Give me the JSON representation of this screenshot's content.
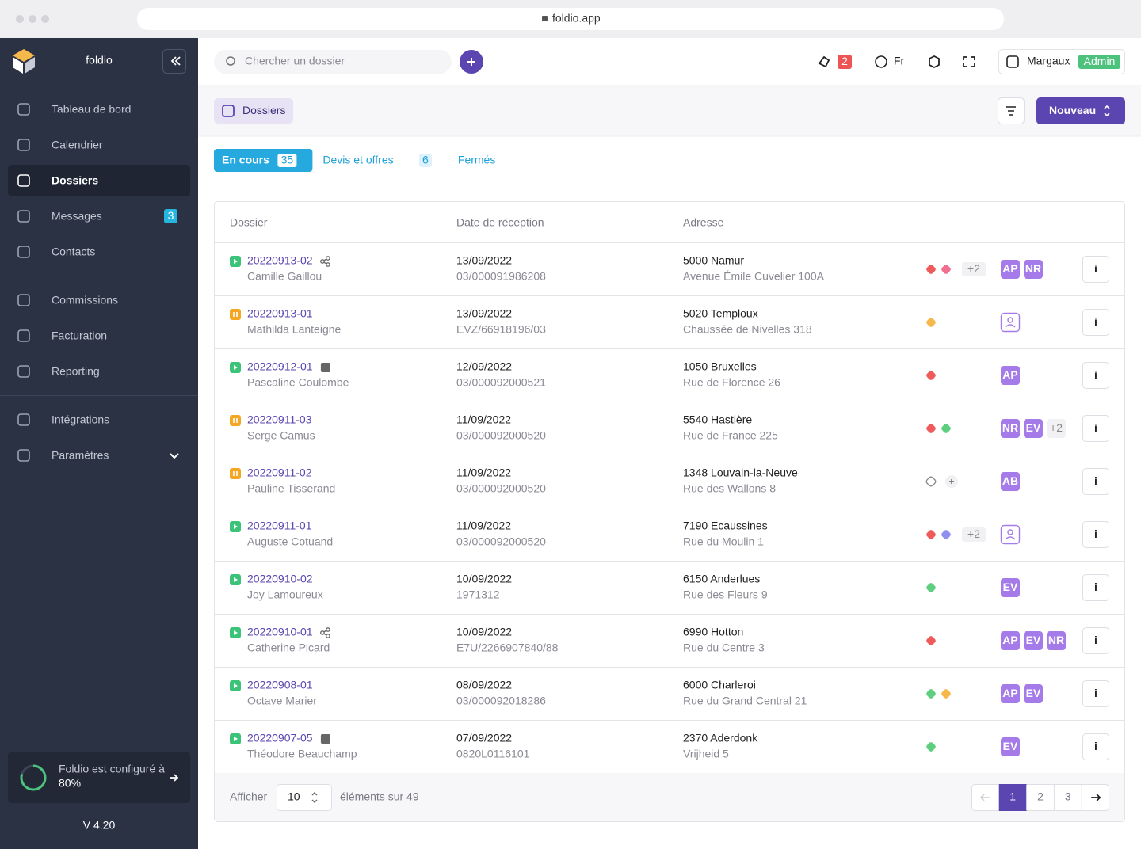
{
  "browser": {
    "url": "foldio.app"
  },
  "sidebar": {
    "brand": "foldio",
    "groups": [
      [
        {
          "label": "Tableau de bord"
        },
        {
          "label": "Calendrier"
        },
        {
          "label": "Dossiers",
          "active": true
        },
        {
          "label": "Messages",
          "badge": "3"
        },
        {
          "label": "Contacts"
        }
      ],
      [
        {
          "label": "Commissions"
        },
        {
          "label": "Facturation"
        },
        {
          "label": "Reporting"
        }
      ],
      [
        {
          "label": "Intégrations"
        },
        {
          "label": "Paramètres",
          "expandable": true
        }
      ]
    ],
    "config": {
      "text": "Foldio est configuré à",
      "progress": {
        "value": 80,
        "label": "80%"
      }
    },
    "version": "V 4.20"
  },
  "topbar": {
    "search_placeholder": "Chercher un dossier",
    "notifications": "2",
    "language": "Fr",
    "user": "Margaux",
    "role": "Admin"
  },
  "header": {
    "title": "Dossiers",
    "new_button": "Nouveau"
  },
  "tabs": [
    {
      "label": "En cours",
      "count": "35",
      "active": true
    },
    {
      "label": "Devis et offres",
      "count": "6"
    },
    {
      "label": "Fermés"
    }
  ],
  "table": {
    "headers": [
      "Dossier",
      "Date de réception",
      "Adresse"
    ],
    "info_label": "i",
    "rows": [
      {
        "id": "20220913-02",
        "status": "play",
        "icon": "share",
        "client": "Camille Gaillou",
        "date": "13/09/2022",
        "ref": "03/000091986208",
        "city": "5000 Namur",
        "street": "Avenue Émile Cuvelier 100A",
        "tags": [
          "#ef5a5a",
          "#f0708f"
        ],
        "tags_more": "+2",
        "assignees": [
          "AP",
          "NR"
        ]
      },
      {
        "id": "20220913-01",
        "status": "pause",
        "client": "Mathilda Lanteigne",
        "date": "13/09/2022",
        "ref": "EVZ/66918196/03",
        "city": "5020 Temploux",
        "street": "Chaussée de Nivelles 318",
        "tags": [
          "#f7b84b"
        ],
        "assignees": []
      },
      {
        "id": "20220912-01",
        "status": "play",
        "icon": "link",
        "client": "Pascaline Coulombe",
        "date": "12/09/2022",
        "ref": "03/000092000521",
        "city": "1050 Bruxelles",
        "street": "Rue de Florence 26",
        "tags": [
          "#ef5a5a"
        ],
        "assignees": [
          "AP"
        ]
      },
      {
        "id": "20220911-03",
        "status": "pause",
        "client": "Serge Camus",
        "date": "11/09/2022",
        "ref": "03/000092000520",
        "city": "5540 Hastière",
        "street": "Rue de France 225",
        "tags": [
          "#ef5a5a",
          "#5dcf7e"
        ],
        "assignees": [
          "NR",
          "EV"
        ],
        "assignees_more": "+2"
      },
      {
        "id": "20220911-02",
        "status": "pause",
        "client": "Pauline Tisserand",
        "date": "11/09/2022",
        "ref": "03/000092000520",
        "city": "1348 Louvain-la-Neuve",
        "street": "Rue des Wallons 8",
        "tags": [],
        "assignees": [
          "AB"
        ]
      },
      {
        "id": "20220911-01",
        "status": "play",
        "client": "Auguste Cotuand",
        "date": "11/09/2022",
        "ref": "03/000092000520",
        "city": "7190 Ecaussines",
        "street": "Rue du Moulin 1",
        "tags": [
          "#ef5a5a",
          "#8f8ff0"
        ],
        "tags_more": "+2",
        "assignees": []
      },
      {
        "id": "20220910-02",
        "status": "play",
        "client": "Joy Lamoureux",
        "date": "10/09/2022",
        "ref": "1971312",
        "city": "6150 Anderlues",
        "street": "Rue des Fleurs 9",
        "tags": [
          "#5dcf7e"
        ],
        "assignees": [
          "EV"
        ]
      },
      {
        "id": "20220910-01",
        "status": "play",
        "icon": "share",
        "client": "Catherine Picard",
        "date": "10/09/2022",
        "ref": "E7U/2266907840/88",
        "city": "6990 Hotton",
        "street": "Rue du Centre 3",
        "tags": [
          "#ef5a5a"
        ],
        "assignees": [
          "AP",
          "EV",
          "NR"
        ]
      },
      {
        "id": "20220908-01",
        "status": "play",
        "client": "Octave Marier",
        "date": "08/09/2022",
        "ref": "03/000092018286",
        "city": "6000 Charleroi",
        "street": "Rue du Grand Central 21",
        "tags": [
          "#5dcf7e",
          "#f7b84b"
        ],
        "assignees": [
          "AP",
          "EV"
        ]
      },
      {
        "id": "20220907-05",
        "status": "play",
        "icon": "link",
        "client": "Théodore Beauchamp",
        "date": "07/09/2022",
        "ref": "0820L0116101",
        "city": "2370 Aderdonk",
        "street": "Vrijheid 5",
        "tags": [
          "#5dcf7e"
        ],
        "assignees": [
          "EV"
        ]
      }
    ]
  },
  "footer": {
    "show_label": "Afficher",
    "page_size": "10",
    "total_label": "éléments sur 49",
    "pages": [
      "1",
      "2",
      "3"
    ],
    "current_page": 0
  }
}
